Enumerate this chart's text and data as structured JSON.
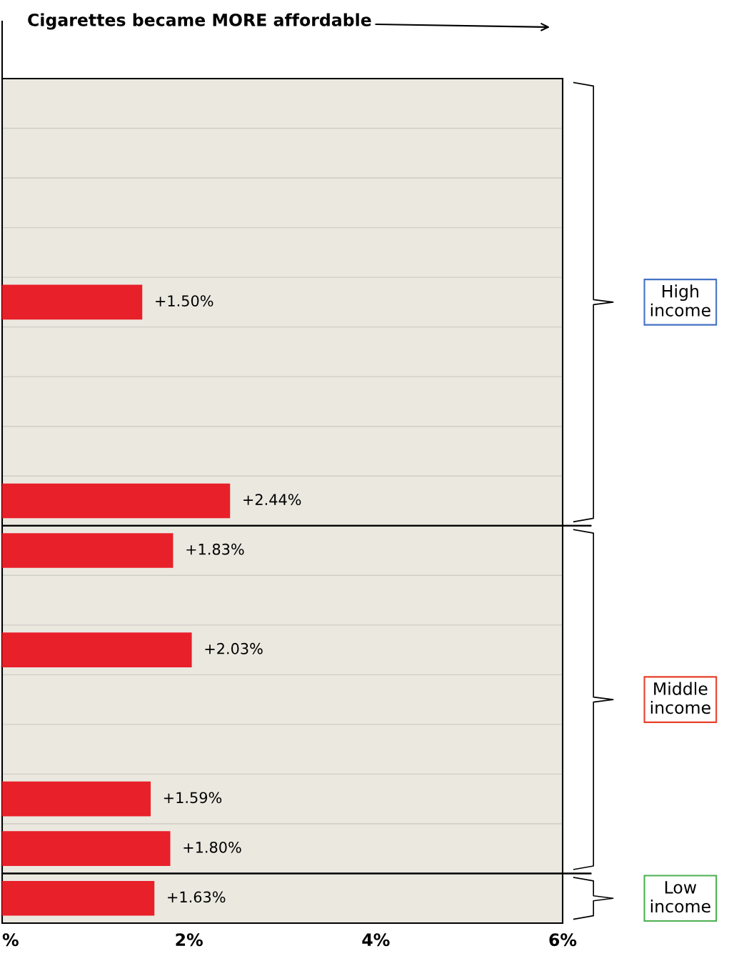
{
  "chart_data": {
    "type": "bar",
    "orientation": "horizontal",
    "title": "Cigarettes became MORE affordable",
    "categories": [
      null,
      null,
      null,
      null,
      null,
      null,
      null,
      null,
      null,
      null,
      null,
      null,
      null,
      null,
      null,
      null,
      null
    ],
    "values": [
      null,
      null,
      null,
      null,
      1.5,
      null,
      null,
      null,
      2.44,
      1.83,
      null,
      2.03,
      null,
      null,
      1.59,
      1.8,
      1.63
    ],
    "value_labels": [
      null,
      null,
      null,
      null,
      "+1.50%",
      null,
      null,
      null,
      "+2.44%",
      "+1.83%",
      null,
      "+2.03%",
      null,
      null,
      "+1.59%",
      "+1.80%",
      "+1.63%"
    ],
    "color": "#e8202a",
    "xlim": [
      0,
      6
    ],
    "xticks": [
      {
        "value": 0,
        "label": "%"
      },
      {
        "value": 2,
        "label": "2%"
      },
      {
        "value": 4,
        "label": "4%"
      },
      {
        "value": 6,
        "label": "6%"
      }
    ],
    "grid": "y",
    "annotations": [
      "High\nincome",
      "Middle\nincome",
      "Low\nincome"
    ]
  }
}
